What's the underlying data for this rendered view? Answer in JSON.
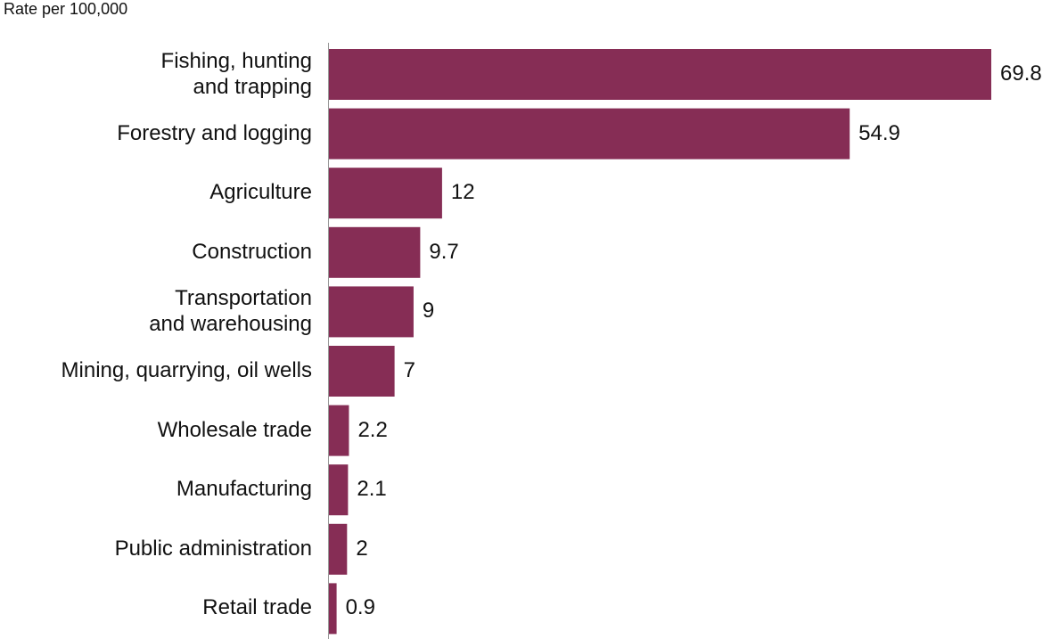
{
  "chart_data": {
    "type": "bar",
    "orientation": "horizontal",
    "title": "Rate per 100,000",
    "categories": [
      "Fishing, hunting\nand trapping",
      "Forestry and logging",
      "Agriculture",
      "Construction",
      "Transportation\nand warehousing",
      "Mining, quarrying, oil wells",
      "Wholesale trade",
      "Manufacturing",
      "Public administration",
      "Retail trade"
    ],
    "values": [
      69.8,
      54.9,
      12,
      9.7,
      9,
      7,
      2.2,
      2.1,
      2,
      0.9
    ],
    "color": "#862d55"
  }
}
